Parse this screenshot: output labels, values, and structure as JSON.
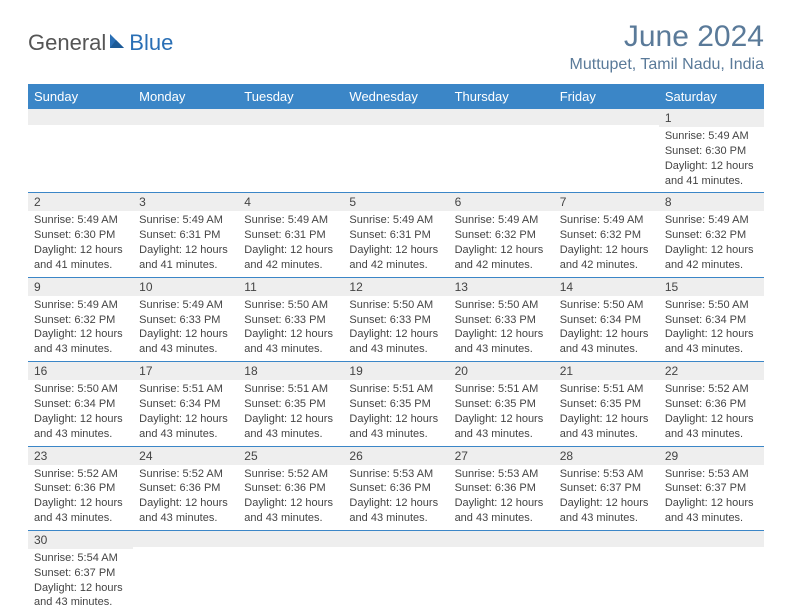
{
  "brand": {
    "part1": "General",
    "part2": "Blue"
  },
  "title": "June 2024",
  "location": "Muttupet, Tamil Nadu, India",
  "colors": {
    "header_bg": "#3b86c7",
    "header_text": "#ffffff",
    "title_color": "#5a7a99",
    "daynum_bg": "#eeeeee",
    "row_border": "#3b86c7",
    "body_text": "#444444"
  },
  "typography": {
    "month_title_fontsize": 30,
    "location_fontsize": 16,
    "header_fontsize": 13,
    "daynum_fontsize": 12,
    "content_fontsize": 11
  },
  "weekdays": [
    "Sunday",
    "Monday",
    "Tuesday",
    "Wednesday",
    "Thursday",
    "Friday",
    "Saturday"
  ],
  "weeks": [
    [
      null,
      null,
      null,
      null,
      null,
      null,
      {
        "n": "1",
        "sunrise": "Sunrise: 5:49 AM",
        "sunset": "Sunset: 6:30 PM",
        "daylight": "Daylight: 12 hours and 41 minutes."
      }
    ],
    [
      {
        "n": "2",
        "sunrise": "Sunrise: 5:49 AM",
        "sunset": "Sunset: 6:30 PM",
        "daylight": "Daylight: 12 hours and 41 minutes."
      },
      {
        "n": "3",
        "sunrise": "Sunrise: 5:49 AM",
        "sunset": "Sunset: 6:31 PM",
        "daylight": "Daylight: 12 hours and 41 minutes."
      },
      {
        "n": "4",
        "sunrise": "Sunrise: 5:49 AM",
        "sunset": "Sunset: 6:31 PM",
        "daylight": "Daylight: 12 hours and 42 minutes."
      },
      {
        "n": "5",
        "sunrise": "Sunrise: 5:49 AM",
        "sunset": "Sunset: 6:31 PM",
        "daylight": "Daylight: 12 hours and 42 minutes."
      },
      {
        "n": "6",
        "sunrise": "Sunrise: 5:49 AM",
        "sunset": "Sunset: 6:32 PM",
        "daylight": "Daylight: 12 hours and 42 minutes."
      },
      {
        "n": "7",
        "sunrise": "Sunrise: 5:49 AM",
        "sunset": "Sunset: 6:32 PM",
        "daylight": "Daylight: 12 hours and 42 minutes."
      },
      {
        "n": "8",
        "sunrise": "Sunrise: 5:49 AM",
        "sunset": "Sunset: 6:32 PM",
        "daylight": "Daylight: 12 hours and 42 minutes."
      }
    ],
    [
      {
        "n": "9",
        "sunrise": "Sunrise: 5:49 AM",
        "sunset": "Sunset: 6:32 PM",
        "daylight": "Daylight: 12 hours and 43 minutes."
      },
      {
        "n": "10",
        "sunrise": "Sunrise: 5:49 AM",
        "sunset": "Sunset: 6:33 PM",
        "daylight": "Daylight: 12 hours and 43 minutes."
      },
      {
        "n": "11",
        "sunrise": "Sunrise: 5:50 AM",
        "sunset": "Sunset: 6:33 PM",
        "daylight": "Daylight: 12 hours and 43 minutes."
      },
      {
        "n": "12",
        "sunrise": "Sunrise: 5:50 AM",
        "sunset": "Sunset: 6:33 PM",
        "daylight": "Daylight: 12 hours and 43 minutes."
      },
      {
        "n": "13",
        "sunrise": "Sunrise: 5:50 AM",
        "sunset": "Sunset: 6:33 PM",
        "daylight": "Daylight: 12 hours and 43 minutes."
      },
      {
        "n": "14",
        "sunrise": "Sunrise: 5:50 AM",
        "sunset": "Sunset: 6:34 PM",
        "daylight": "Daylight: 12 hours and 43 minutes."
      },
      {
        "n": "15",
        "sunrise": "Sunrise: 5:50 AM",
        "sunset": "Sunset: 6:34 PM",
        "daylight": "Daylight: 12 hours and 43 minutes."
      }
    ],
    [
      {
        "n": "16",
        "sunrise": "Sunrise: 5:50 AM",
        "sunset": "Sunset: 6:34 PM",
        "daylight": "Daylight: 12 hours and 43 minutes."
      },
      {
        "n": "17",
        "sunrise": "Sunrise: 5:51 AM",
        "sunset": "Sunset: 6:34 PM",
        "daylight": "Daylight: 12 hours and 43 minutes."
      },
      {
        "n": "18",
        "sunrise": "Sunrise: 5:51 AM",
        "sunset": "Sunset: 6:35 PM",
        "daylight": "Daylight: 12 hours and 43 minutes."
      },
      {
        "n": "19",
        "sunrise": "Sunrise: 5:51 AM",
        "sunset": "Sunset: 6:35 PM",
        "daylight": "Daylight: 12 hours and 43 minutes."
      },
      {
        "n": "20",
        "sunrise": "Sunrise: 5:51 AM",
        "sunset": "Sunset: 6:35 PM",
        "daylight": "Daylight: 12 hours and 43 minutes."
      },
      {
        "n": "21",
        "sunrise": "Sunrise: 5:51 AM",
        "sunset": "Sunset: 6:35 PM",
        "daylight": "Daylight: 12 hours and 43 minutes."
      },
      {
        "n": "22",
        "sunrise": "Sunrise: 5:52 AM",
        "sunset": "Sunset: 6:36 PM",
        "daylight": "Daylight: 12 hours and 43 minutes."
      }
    ],
    [
      {
        "n": "23",
        "sunrise": "Sunrise: 5:52 AM",
        "sunset": "Sunset: 6:36 PM",
        "daylight": "Daylight: 12 hours and 43 minutes."
      },
      {
        "n": "24",
        "sunrise": "Sunrise: 5:52 AM",
        "sunset": "Sunset: 6:36 PM",
        "daylight": "Daylight: 12 hours and 43 minutes."
      },
      {
        "n": "25",
        "sunrise": "Sunrise: 5:52 AM",
        "sunset": "Sunset: 6:36 PM",
        "daylight": "Daylight: 12 hours and 43 minutes."
      },
      {
        "n": "26",
        "sunrise": "Sunrise: 5:53 AM",
        "sunset": "Sunset: 6:36 PM",
        "daylight": "Daylight: 12 hours and 43 minutes."
      },
      {
        "n": "27",
        "sunrise": "Sunrise: 5:53 AM",
        "sunset": "Sunset: 6:36 PM",
        "daylight": "Daylight: 12 hours and 43 minutes."
      },
      {
        "n": "28",
        "sunrise": "Sunrise: 5:53 AM",
        "sunset": "Sunset: 6:37 PM",
        "daylight": "Daylight: 12 hours and 43 minutes."
      },
      {
        "n": "29",
        "sunrise": "Sunrise: 5:53 AM",
        "sunset": "Sunset: 6:37 PM",
        "daylight": "Daylight: 12 hours and 43 minutes."
      }
    ],
    [
      {
        "n": "30",
        "sunrise": "Sunrise: 5:54 AM",
        "sunset": "Sunset: 6:37 PM",
        "daylight": "Daylight: 12 hours and 43 minutes."
      },
      null,
      null,
      null,
      null,
      null,
      null
    ]
  ]
}
